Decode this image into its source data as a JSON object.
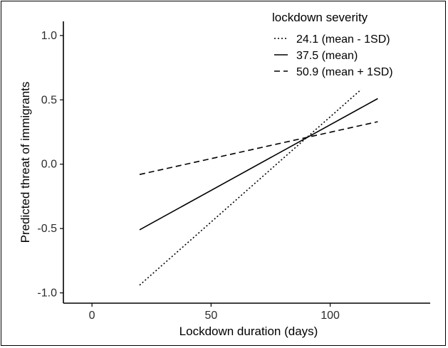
{
  "chart_data": {
    "type": "line",
    "title": "",
    "xlabel": "Lockdown duration (days)",
    "ylabel": "Predicted threat of immigrants",
    "xlim": [
      -12,
      142
    ],
    "ylim": [
      -1.08,
      1.11
    ],
    "xticks": [
      "0",
      "50",
      "100"
    ],
    "xtick_values": [
      0,
      50,
      100
    ],
    "yticks": [
      "1.0",
      "0.5",
      "0.0",
      "-0.5",
      "-1.0"
    ],
    "ytick_values": [
      1.0,
      0.5,
      0.0,
      -0.5,
      -1.0
    ],
    "grid": false,
    "legend": {
      "title": "lockdown severity",
      "placement": "top-right"
    },
    "series": [
      {
        "name": "24.1 (mean - 1SD)",
        "style": "dotted",
        "x": [
          20,
          113
        ],
        "y": [
          -0.94,
          0.58
        ]
      },
      {
        "name": "37.5 (mean)",
        "style": "solid",
        "x": [
          20,
          120
        ],
        "y": [
          -0.51,
          0.51
        ]
      },
      {
        "name": "50.9 (mean + 1SD)",
        "style": "dashed",
        "x": [
          20,
          120
        ],
        "y": [
          -0.08,
          0.33
        ]
      }
    ],
    "line_color": "#000000"
  }
}
